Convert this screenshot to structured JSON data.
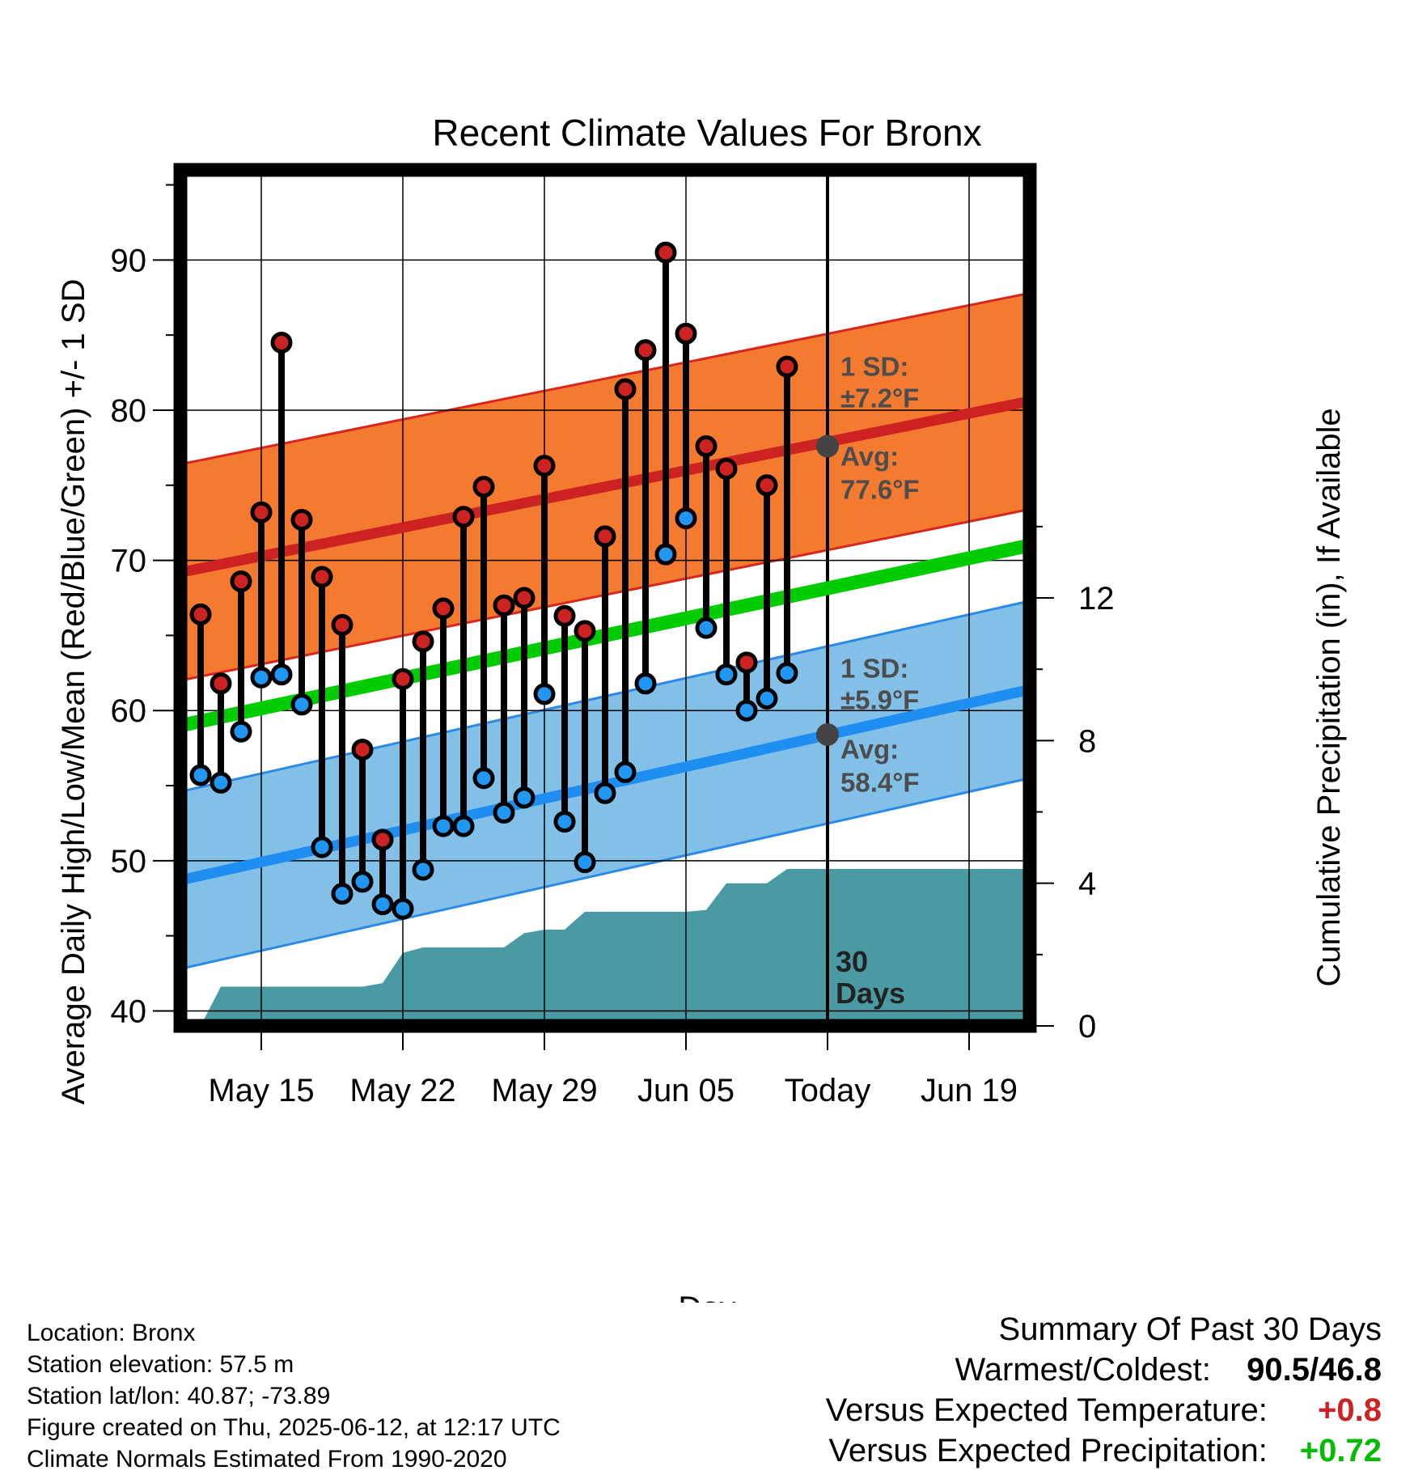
{
  "chart_data": {
    "type": "line",
    "title": "Recent Climate Values For Bronx",
    "xlabel": "Day",
    "ylabel": "Average Daily High/Low/Mean (Red/Blue/Green) +/- 1 SD",
    "y2label": "Cumulative Precipitation (in), If Available",
    "ylim": [
      39,
      96
    ],
    "y2lim": [
      0,
      24
    ],
    "x_range": [
      "2025-05-11",
      "2025-06-22"
    ],
    "x_ticks": [
      {
        "date": "2025-05-15",
        "label": "May 15"
      },
      {
        "date": "2025-05-22",
        "label": "May 22"
      },
      {
        "date": "2025-05-29",
        "label": "May 29"
      },
      {
        "date": "2025-06-05",
        "label": "Jun 05"
      },
      {
        "date": "2025-06-12",
        "label": "Today"
      },
      {
        "date": "2025-06-19",
        "label": "Jun 19"
      }
    ],
    "y_ticks": [
      40,
      50,
      60,
      70,
      80,
      90
    ],
    "y2_ticks": [
      0,
      4,
      8,
      12
    ],
    "grid": true,
    "today": "2025-06-12",
    "series": [
      {
        "name": "High",
        "color": "#cc2222",
        "x": [
          "2025-05-12",
          "2025-05-13",
          "2025-05-14",
          "2025-05-15",
          "2025-05-16",
          "2025-05-17",
          "2025-05-18",
          "2025-05-19",
          "2025-05-20",
          "2025-05-21",
          "2025-05-22",
          "2025-05-23",
          "2025-05-24",
          "2025-05-25",
          "2025-05-26",
          "2025-05-27",
          "2025-05-28",
          "2025-05-29",
          "2025-05-30",
          "2025-05-31",
          "2025-06-01",
          "2025-06-02",
          "2025-06-03",
          "2025-06-04",
          "2025-06-05",
          "2025-06-06",
          "2025-06-07",
          "2025-06-08",
          "2025-06-09",
          "2025-06-10",
          "2025-06-11"
        ],
        "values": [
          66.4,
          61.8,
          68.6,
          73.2,
          84.5,
          72.7,
          68.9,
          65.7,
          57.4,
          51.4,
          62.1,
          64.6,
          66.8,
          72.9,
          74.9,
          67.0,
          67.5,
          76.3,
          66.3,
          65.3,
          71.6,
          81.4,
          84.0,
          90.5,
          85.1,
          77.6,
          76.1,
          63.2,
          75.0,
          82.9,
          null
        ]
      },
      {
        "name": "Low",
        "color": "#2196f3",
        "x": [
          "2025-05-12",
          "2025-05-13",
          "2025-05-14",
          "2025-05-15",
          "2025-05-16",
          "2025-05-17",
          "2025-05-18",
          "2025-05-19",
          "2025-05-20",
          "2025-05-21",
          "2025-05-22",
          "2025-05-23",
          "2025-05-24",
          "2025-05-25",
          "2025-05-26",
          "2025-05-27",
          "2025-05-28",
          "2025-05-29",
          "2025-05-30",
          "2025-05-31",
          "2025-06-01",
          "2025-06-02",
          "2025-06-03",
          "2025-06-04",
          "2025-06-05",
          "2025-06-06",
          "2025-06-07",
          "2025-06-08",
          "2025-06-09",
          "2025-06-10",
          "2025-06-11"
        ],
        "values": [
          55.7,
          55.2,
          58.6,
          62.2,
          62.4,
          60.4,
          50.9,
          47.8,
          48.6,
          47.1,
          46.8,
          49.4,
          52.3,
          52.3,
          55.5,
          53.2,
          54.2,
          61.1,
          52.6,
          49.9,
          54.5,
          55.9,
          61.8,
          70.4,
          72.8,
          65.5,
          62.4,
          60.0,
          60.8,
          62.5,
          null
        ]
      },
      {
        "name": "Normal High",
        "color": "#cc2222",
        "x": [
          "2025-05-11",
          "2025-06-22"
        ],
        "values": [
          69.2,
          80.6
        ],
        "sd": 7.2
      },
      {
        "name": "Normal Low",
        "color": "#2196f3",
        "x": [
          "2025-05-11",
          "2025-06-22"
        ],
        "values": [
          48.7,
          61.4
        ],
        "sd": 5.9
      },
      {
        "name": "Normal Mean",
        "color": "#00cc00",
        "x": [
          "2025-05-11",
          "2025-06-22"
        ],
        "values": [
          59.0,
          71.0
        ]
      },
      {
        "name": "Cumulative Precipitation",
        "color": "#4a9aa3",
        "axis": "y2",
        "x": [
          "2025-05-11",
          "2025-05-12",
          "2025-05-13",
          "2025-05-14",
          "2025-05-15",
          "2025-05-16",
          "2025-05-17",
          "2025-05-18",
          "2025-05-19",
          "2025-05-20",
          "2025-05-21",
          "2025-05-22",
          "2025-05-23",
          "2025-05-24",
          "2025-05-25",
          "2025-05-26",
          "2025-05-27",
          "2025-05-28",
          "2025-05-29",
          "2025-05-30",
          "2025-05-31",
          "2025-06-01",
          "2025-06-02",
          "2025-06-03",
          "2025-06-04",
          "2025-06-05",
          "2025-06-06",
          "2025-06-07",
          "2025-06-08",
          "2025-06-09",
          "2025-06-10",
          "2025-06-11",
          "2025-06-12",
          "2025-06-22"
        ],
        "values": [
          0,
          0,
          1.1,
          1.1,
          1.1,
          1.1,
          1.1,
          1.1,
          1.1,
          1.1,
          1.2,
          2.05,
          2.2,
          2.2,
          2.2,
          2.2,
          2.2,
          2.6,
          2.7,
          2.7,
          3.2,
          3.2,
          3.2,
          3.2,
          3.2,
          3.2,
          3.25,
          4.0,
          4.0,
          4.0,
          4.4,
          4.4,
          4.4,
          4.4
        ]
      }
    ],
    "annotations": {
      "high_sd_label": "1 SD:",
      "high_sd_value": "±7.2°F",
      "high_avg_label": "Avg:",
      "high_avg_value": "77.6°F",
      "low_sd_label": "1 SD:",
      "low_sd_value": "±5.9°F",
      "low_avg_label": "Avg:",
      "low_avg_value": "58.4°F",
      "today_high_avg": 77.6,
      "today_low_avg": 58.4,
      "days_line1": "30",
      "days_line2": "Days"
    },
    "colors": {
      "high_band": "#f47a30",
      "low_band": "#82c0e8",
      "precip": "#4a9aa3",
      "high_dot": "#cc2222",
      "low_dot": "#2196f3",
      "mean_line": "#00cc00"
    }
  },
  "info": {
    "location": "Location: Bronx",
    "elevation": "Station elevation: 57.5 m",
    "latlon": "Station lat/lon: 40.87; -73.89",
    "created": "Figure created on Thu, 2025-06-12, at 12:17 UTC",
    "normals": "Climate Normals Estimated From 1990-2020"
  },
  "summary": {
    "heading": "Summary Of Past 30 Days",
    "warm_cold_label": "Warmest/Coldest:",
    "warm_cold_value": "90.5/46.8",
    "temp_label": "Versus Expected Temperature:",
    "temp_value": "+0.8",
    "temp_color": "#cc2222",
    "precip_label": "Versus Expected Precipitation:",
    "precip_value": "+0.72",
    "precip_color": "#00bb00"
  }
}
